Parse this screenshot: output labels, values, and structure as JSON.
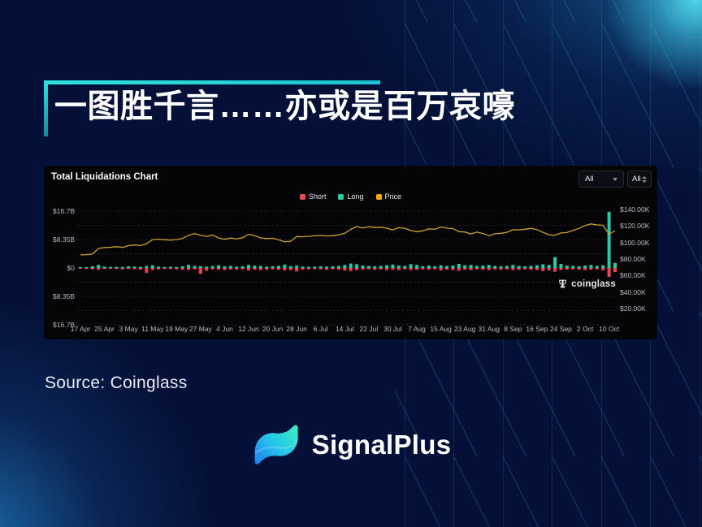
{
  "slide": {
    "title": "一图胜千言……亦或是百万哀嚎",
    "source_label": "Source: Coinglass",
    "brand_name": "SignalPlus"
  },
  "chart_panel": {
    "title": "Total Liquidations Chart",
    "dropdown_primary": "All",
    "dropdown_secondary": "All",
    "watermark": "coinglass",
    "legend": [
      {
        "label": "Short",
        "color": "#ee4456"
      },
      {
        "label": "Long",
        "color": "#28c9a8"
      },
      {
        "label": "Price",
        "color": "#f0ab00"
      }
    ]
  },
  "chart_data": {
    "type": "combo: bar (long/short liquidations, $B, mirrored around $0) + line (price, $K)",
    "title": "Total Liquidations Chart",
    "legend_position": "top-center",
    "grid": "dashed horizontal",
    "x_tick_labels": [
      "17 Apr",
      "25 Apr",
      "3 May",
      "11 May",
      "19 May",
      "27 May",
      "4 Jun",
      "12 Jun",
      "20 Jun",
      "28 Jun",
      "6 Jul",
      "14 Jul",
      "22 Jul",
      "30 Jul",
      "7 Aug",
      "15 Aug",
      "23 Aug",
      "31 Aug",
      "8 Sep",
      "16 Sep",
      "24 Sep",
      "2 Oct",
      "10 Oct"
    ],
    "x_ticks_every_n_points": 4,
    "y_left": {
      "labels": [
        "$16.7B",
        "$8.35B",
        "$0",
        "$8.35B",
        "$16.7B"
      ],
      "range_b": [
        -16.7,
        16.7
      ]
    },
    "y_right": {
      "labels": [
        "$140.00K",
        "$120.00K",
        "$100.00K",
        "$80.00K",
        "$60.00K",
        "$40.00K",
        "$20.00K"
      ],
      "range_k": [
        13,
        152
      ]
    },
    "series": [
      {
        "name": "Long",
        "unit": "$B",
        "color": "#28c9a8",
        "values": [
          0.3,
          0.25,
          0.5,
          0.9,
          0.4,
          0.3,
          0.35,
          0.3,
          0.5,
          0.4,
          0.3,
          0.6,
          0.8,
          0.4,
          0.3,
          0.35,
          0.3,
          0.5,
          0.9,
          0.6,
          0.5,
          0.4,
          0.6,
          0.8,
          0.5,
          0.6,
          0.4,
          0.5,
          0.9,
          0.7,
          0.6,
          0.4,
          0.5,
          0.6,
          1.0,
          0.5,
          0.7,
          0.4,
          0.35,
          0.4,
          0.5,
          0.4,
          0.5,
          0.6,
          0.9,
          1.3,
          1.1,
          0.7,
          0.6,
          0.5,
          0.6,
          0.8,
          1.0,
          0.7,
          0.6,
          1.1,
          0.9,
          0.5,
          0.7,
          0.5,
          0.8,
          0.6,
          0.7,
          1.2,
          0.8,
          0.9,
          0.6,
          0.7,
          0.9,
          0.6,
          0.5,
          0.6,
          0.9,
          0.6,
          0.5,
          0.6,
          0.8,
          1.1,
          0.9,
          3.2,
          1.2,
          0.7,
          0.6,
          0.5,
          0.7,
          0.9,
          0.6,
          0.8,
          16.5,
          1.5
        ]
      },
      {
        "name": "Short",
        "unit": "$B",
        "color": "#ee4456",
        "values": [
          0.2,
          0.3,
          0.4,
          0.5,
          0.3,
          0.25,
          0.3,
          0.4,
          0.3,
          0.35,
          0.5,
          1.4,
          0.6,
          0.4,
          0.3,
          0.3,
          0.4,
          0.5,
          0.6,
          0.4,
          1.7,
          0.8,
          0.4,
          0.5,
          0.6,
          0.4,
          0.5,
          0.4,
          0.7,
          0.5,
          0.6,
          0.5,
          0.4,
          0.5,
          0.7,
          0.6,
          1.0,
          0.5,
          0.4,
          0.35,
          0.4,
          0.5,
          0.4,
          0.5,
          0.7,
          0.9,
          0.6,
          0.5,
          0.4,
          0.5,
          0.4,
          0.6,
          0.5,
          0.6,
          0.4,
          0.6,
          0.5,
          0.4,
          0.5,
          0.4,
          0.7,
          0.5,
          0.6,
          0.8,
          0.5,
          0.6,
          0.4,
          0.5,
          0.6,
          0.4,
          0.5,
          0.4,
          0.6,
          0.5,
          0.4,
          0.5,
          0.6,
          0.9,
          0.7,
          1.1,
          0.6,
          0.5,
          0.4,
          0.5,
          0.6,
          0.5,
          0.4,
          0.7,
          2.6,
          1.2
        ]
      },
      {
        "name": "Price",
        "unit": "$K",
        "color": "#cda22e",
        "values": [
          85,
          85.3,
          86,
          92.8,
          94,
          94.3,
          95,
          94.2,
          96.3,
          97,
          96.4,
          98.5,
          103.5,
          104,
          103.4,
          103,
          103.6,
          105,
          108.8,
          110.8,
          109,
          107.3,
          109.2,
          105.6,
          104,
          105.4,
          104.5,
          105.8,
          110,
          108.3,
          105.6,
          104.8,
          105.2,
          103.3,
          101,
          101.6,
          107.3,
          107,
          107.5,
          108.2,
          108.6,
          108,
          108.3,
          109.4,
          111.2,
          116,
          119.4,
          117.6,
          119.2,
          118.2,
          118.6,
          117.4,
          115.3,
          118,
          117.3,
          114.6,
          113.3,
          114.2,
          116.6,
          116.2,
          118.8,
          117.4,
          117,
          113.2,
          112.8,
          110.4,
          112.6,
          111,
          108.4,
          110.6,
          111.2,
          112.3,
          115.6,
          115.4,
          116.2,
          117.2,
          115.8,
          112.4,
          109.4,
          109,
          111.6,
          112.2,
          114.6,
          117.2,
          120.6,
          122.6,
          121.4,
          121,
          110,
          114.5
        ]
      }
    ]
  },
  "colors": {
    "background": "#041037",
    "accent_teal": "#2fe3da",
    "panel": "#050507",
    "short_red": "#ee4456",
    "long_teal": "#28c9a8",
    "price_gold": "#cda22e"
  }
}
